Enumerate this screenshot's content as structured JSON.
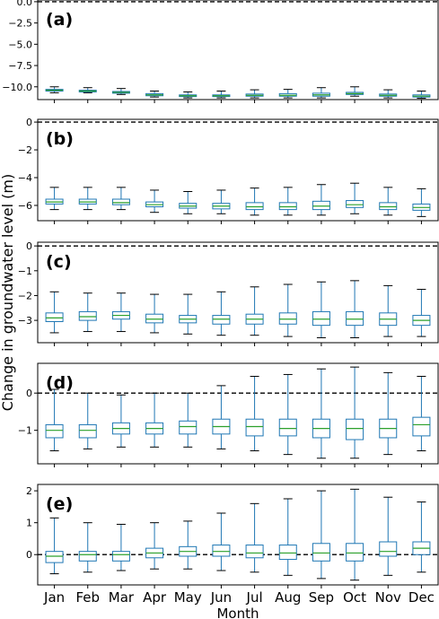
{
  "figure": {
    "xlabel": "Month",
    "ylabel": "Change in groundwater level (m)"
  },
  "colors": {
    "box": "#1f77b4",
    "median": "#2ca02c",
    "reference_line": "#000000",
    "axes": "#000000"
  },
  "chart_data": [
    {
      "type": "box",
      "panel_label": "(a)",
      "categories": [
        "Jan",
        "Feb",
        "Mar",
        "Apr",
        "May",
        "Jun",
        "Jul",
        "Aug",
        "Sep",
        "Oct",
        "Nov",
        "Dec"
      ],
      "ylim": [
        -11.5,
        0.2
      ],
      "yticks": [
        0.0,
        -2.5,
        -5.0,
        -7.5,
        -10.0
      ],
      "ytick_labels": [
        "0.0",
        "−2.5",
        "−5.0",
        "−7.5",
        "−10.0"
      ],
      "reference_line": 0,
      "show_xtick_labels": false,
      "boxes": [
        {
          "whislo": -10.7,
          "q1": -10.5,
          "med": -10.4,
          "q3": -10.3,
          "whishi": -10.0
        },
        {
          "whislo": -10.7,
          "q1": -10.6,
          "med": -10.5,
          "q3": -10.4,
          "whishi": -10.1
        },
        {
          "whislo": -10.9,
          "q1": -10.75,
          "med": -10.65,
          "q3": -10.55,
          "whishi": -10.2
        },
        {
          "whislo": -11.2,
          "q1": -11.05,
          "med": -10.95,
          "q3": -10.8,
          "whishi": -10.5
        },
        {
          "whislo": -11.3,
          "q1": -11.15,
          "med": -11.05,
          "q3": -10.95,
          "whishi": -10.6
        },
        {
          "whislo": -11.3,
          "q1": -11.15,
          "med": -11.05,
          "q3": -10.95,
          "whishi": -10.5
        },
        {
          "whislo": -11.3,
          "q1": -11.1,
          "med": -11.0,
          "q3": -10.85,
          "whishi": -10.35
        },
        {
          "whislo": -11.3,
          "q1": -11.1,
          "med": -11.0,
          "q3": -10.8,
          "whishi": -10.3
        },
        {
          "whislo": -11.3,
          "q1": -11.1,
          "med": -10.95,
          "q3": -10.75,
          "whishi": -10.1
        },
        {
          "whislo": -11.1,
          "q1": -10.9,
          "med": -10.8,
          "q3": -10.65,
          "whishi": -10.0
        },
        {
          "whislo": -11.3,
          "q1": -11.1,
          "med": -11.0,
          "q3": -10.85,
          "whishi": -10.35
        },
        {
          "whislo": -11.35,
          "q1": -11.2,
          "med": -11.1,
          "q3": -10.95,
          "whishi": -10.5
        }
      ]
    },
    {
      "type": "box",
      "panel_label": "(b)",
      "categories": [
        "Jan",
        "Feb",
        "Mar",
        "Apr",
        "May",
        "Jun",
        "Jul",
        "Aug",
        "Sep",
        "Oct",
        "Nov",
        "Dec"
      ],
      "ylim": [
        -7.1,
        0.2
      ],
      "yticks": [
        0,
        -2,
        -4,
        -6
      ],
      "ytick_labels": [
        "0",
        "−2",
        "−4",
        "−6"
      ],
      "reference_line": 0,
      "show_xtick_labels": false,
      "boxes": [
        {
          "whislo": -6.3,
          "q1": -5.9,
          "med": -5.75,
          "q3": -5.55,
          "whishi": -4.7
        },
        {
          "whislo": -6.3,
          "q1": -5.9,
          "med": -5.75,
          "q3": -5.55,
          "whishi": -4.7
        },
        {
          "whislo": -6.3,
          "q1": -5.95,
          "med": -5.8,
          "q3": -5.55,
          "whishi": -4.7
        },
        {
          "whislo": -6.5,
          "q1": -6.1,
          "med": -5.95,
          "q3": -5.75,
          "whishi": -4.9
        },
        {
          "whislo": -6.6,
          "q1": -6.2,
          "med": -6.05,
          "q3": -5.85,
          "whishi": -5.0
        },
        {
          "whislo": -6.6,
          "q1": -6.25,
          "med": -6.05,
          "q3": -5.85,
          "whishi": -4.9
        },
        {
          "whislo": -6.7,
          "q1": -6.3,
          "med": -6.1,
          "q3": -5.8,
          "whishi": -4.75
        },
        {
          "whislo": -6.7,
          "q1": -6.3,
          "med": -6.1,
          "q3": -5.8,
          "whishi": -4.7
        },
        {
          "whislo": -6.7,
          "q1": -6.3,
          "med": -6.05,
          "q3": -5.7,
          "whishi": -4.5
        },
        {
          "whislo": -6.6,
          "q1": -6.15,
          "med": -5.95,
          "q3": -5.65,
          "whishi": -4.4
        },
        {
          "whislo": -6.7,
          "q1": -6.3,
          "med": -6.1,
          "q3": -5.8,
          "whishi": -4.7
        },
        {
          "whislo": -6.8,
          "q1": -6.35,
          "med": -6.15,
          "q3": -5.9,
          "whishi": -4.8
        }
      ]
    },
    {
      "type": "box",
      "panel_label": "(c)",
      "categories": [
        "Jan",
        "Feb",
        "Mar",
        "Apr",
        "May",
        "Jun",
        "Jul",
        "Aug",
        "Sep",
        "Oct",
        "Nov",
        "Dec"
      ],
      "ylim": [
        -3.9,
        0.15
      ],
      "yticks": [
        0,
        -1,
        -2,
        -3
      ],
      "ytick_labels": [
        "0",
        "−1",
        "−2",
        "−3"
      ],
      "reference_line": 0,
      "show_xtick_labels": false,
      "boxes": [
        {
          "whislo": -3.5,
          "q1": -3.05,
          "med": -2.9,
          "q3": -2.7,
          "whishi": -1.85
        },
        {
          "whislo": -3.45,
          "q1": -3.0,
          "med": -2.85,
          "q3": -2.65,
          "whishi": -1.9
        },
        {
          "whislo": -3.45,
          "q1": -2.95,
          "med": -2.8,
          "q3": -2.65,
          "whishi": -1.9
        },
        {
          "whislo": -3.5,
          "q1": -3.1,
          "med": -2.95,
          "q3": -2.75,
          "whishi": -1.95
        },
        {
          "whislo": -3.55,
          "q1": -3.1,
          "med": -2.95,
          "q3": -2.8,
          "whishi": -1.95
        },
        {
          "whislo": -3.6,
          "q1": -3.15,
          "med": -2.95,
          "q3": -2.8,
          "whishi": -1.85
        },
        {
          "whislo": -3.6,
          "q1": -3.15,
          "med": -2.95,
          "q3": -2.75,
          "whishi": -1.65
        },
        {
          "whislo": -3.65,
          "q1": -3.15,
          "med": -2.95,
          "q3": -2.7,
          "whishi": -1.55
        },
        {
          "whislo": -3.7,
          "q1": -3.2,
          "med": -2.95,
          "q3": -2.65,
          "whishi": -1.45
        },
        {
          "whislo": -3.7,
          "q1": -3.2,
          "med": -2.95,
          "q3": -2.65,
          "whishi": -1.4
        },
        {
          "whislo": -3.65,
          "q1": -3.2,
          "med": -2.95,
          "q3": -2.7,
          "whishi": -1.6
        },
        {
          "whislo": -3.65,
          "q1": -3.2,
          "med": -3.0,
          "q3": -2.8,
          "whishi": -1.75
        }
      ]
    },
    {
      "type": "box",
      "panel_label": "(d)",
      "categories": [
        "Jan",
        "Feb",
        "Mar",
        "Apr",
        "May",
        "Jun",
        "Jul",
        "Aug",
        "Sep",
        "Oct",
        "Nov",
        "Dec"
      ],
      "ylim": [
        -1.9,
        0.8
      ],
      "yticks": [
        0,
        -1
      ],
      "ytick_labels": [
        "0",
        "−1"
      ],
      "reference_line": 0,
      "show_xtick_labels": false,
      "boxes": [
        {
          "whislo": -1.55,
          "q1": -1.2,
          "med": -1.0,
          "q3": -0.85,
          "whishi": 0.1
        },
        {
          "whislo": -1.5,
          "q1": -1.2,
          "med": -1.0,
          "q3": -0.85,
          "whishi": 0.0
        },
        {
          "whislo": -1.45,
          "q1": -1.1,
          "med": -0.95,
          "q3": -0.8,
          "whishi": -0.05
        },
        {
          "whislo": -1.45,
          "q1": -1.1,
          "med": -0.95,
          "q3": -0.8,
          "whishi": 0.0
        },
        {
          "whislo": -1.45,
          "q1": -1.1,
          "med": -0.9,
          "q3": -0.75,
          "whishi": 0.0
        },
        {
          "whislo": -1.5,
          "q1": -1.1,
          "med": -0.9,
          "q3": -0.7,
          "whishi": 0.2
        },
        {
          "whislo": -1.55,
          "q1": -1.15,
          "med": -0.9,
          "q3": -0.7,
          "whishi": 0.45
        },
        {
          "whislo": -1.65,
          "q1": -1.15,
          "med": -0.95,
          "q3": -0.7,
          "whishi": 0.5
        },
        {
          "whislo": -1.75,
          "q1": -1.2,
          "med": -0.95,
          "q3": -0.7,
          "whishi": 0.65
        },
        {
          "whislo": -1.75,
          "q1": -1.25,
          "med": -0.95,
          "q3": -0.7,
          "whishi": 0.7
        },
        {
          "whislo": -1.65,
          "q1": -1.2,
          "med": -0.95,
          "q3": -0.7,
          "whishi": 0.55
        },
        {
          "whislo": -1.55,
          "q1": -1.15,
          "med": -0.85,
          "q3": -0.65,
          "whishi": 0.45
        }
      ]
    },
    {
      "type": "box",
      "panel_label": "(e)",
      "categories": [
        "Jan",
        "Feb",
        "Mar",
        "Apr",
        "May",
        "Jun",
        "Jul",
        "Aug",
        "Sep",
        "Oct",
        "Nov",
        "Dec"
      ],
      "ylim": [
        -0.95,
        2.2
      ],
      "yticks": [
        0,
        1,
        2
      ],
      "ytick_labels": [
        "0",
        "1",
        "2"
      ],
      "reference_line": 0,
      "show_xtick_labels": true,
      "boxes": [
        {
          "whislo": -0.6,
          "q1": -0.25,
          "med": -0.05,
          "q3": 0.1,
          "whishi": 1.15
        },
        {
          "whislo": -0.55,
          "q1": -0.2,
          "med": 0.0,
          "q3": 0.1,
          "whishi": 1.0
        },
        {
          "whislo": -0.5,
          "q1": -0.2,
          "med": 0.0,
          "q3": 0.1,
          "whishi": 0.95
        },
        {
          "whislo": -0.45,
          "q1": -0.1,
          "med": 0.05,
          "q3": 0.2,
          "whishi": 1.0
        },
        {
          "whislo": -0.45,
          "q1": -0.05,
          "med": 0.1,
          "q3": 0.25,
          "whishi": 1.05
        },
        {
          "whislo": -0.5,
          "q1": -0.05,
          "med": 0.1,
          "q3": 0.3,
          "whishi": 1.3
        },
        {
          "whislo": -0.55,
          "q1": -0.1,
          "med": 0.05,
          "q3": 0.3,
          "whishi": 1.6
        },
        {
          "whislo": -0.65,
          "q1": -0.15,
          "med": 0.05,
          "q3": 0.3,
          "whishi": 1.75
        },
        {
          "whislo": -0.75,
          "q1": -0.2,
          "med": 0.05,
          "q3": 0.35,
          "whishi": 2.0
        },
        {
          "whislo": -0.8,
          "q1": -0.2,
          "med": 0.05,
          "q3": 0.35,
          "whishi": 2.05
        },
        {
          "whislo": -0.65,
          "q1": -0.05,
          "med": 0.1,
          "q3": 0.4,
          "whishi": 1.8
        },
        {
          "whislo": -0.55,
          "q1": 0.0,
          "med": 0.2,
          "q3": 0.4,
          "whishi": 1.65
        }
      ]
    }
  ]
}
